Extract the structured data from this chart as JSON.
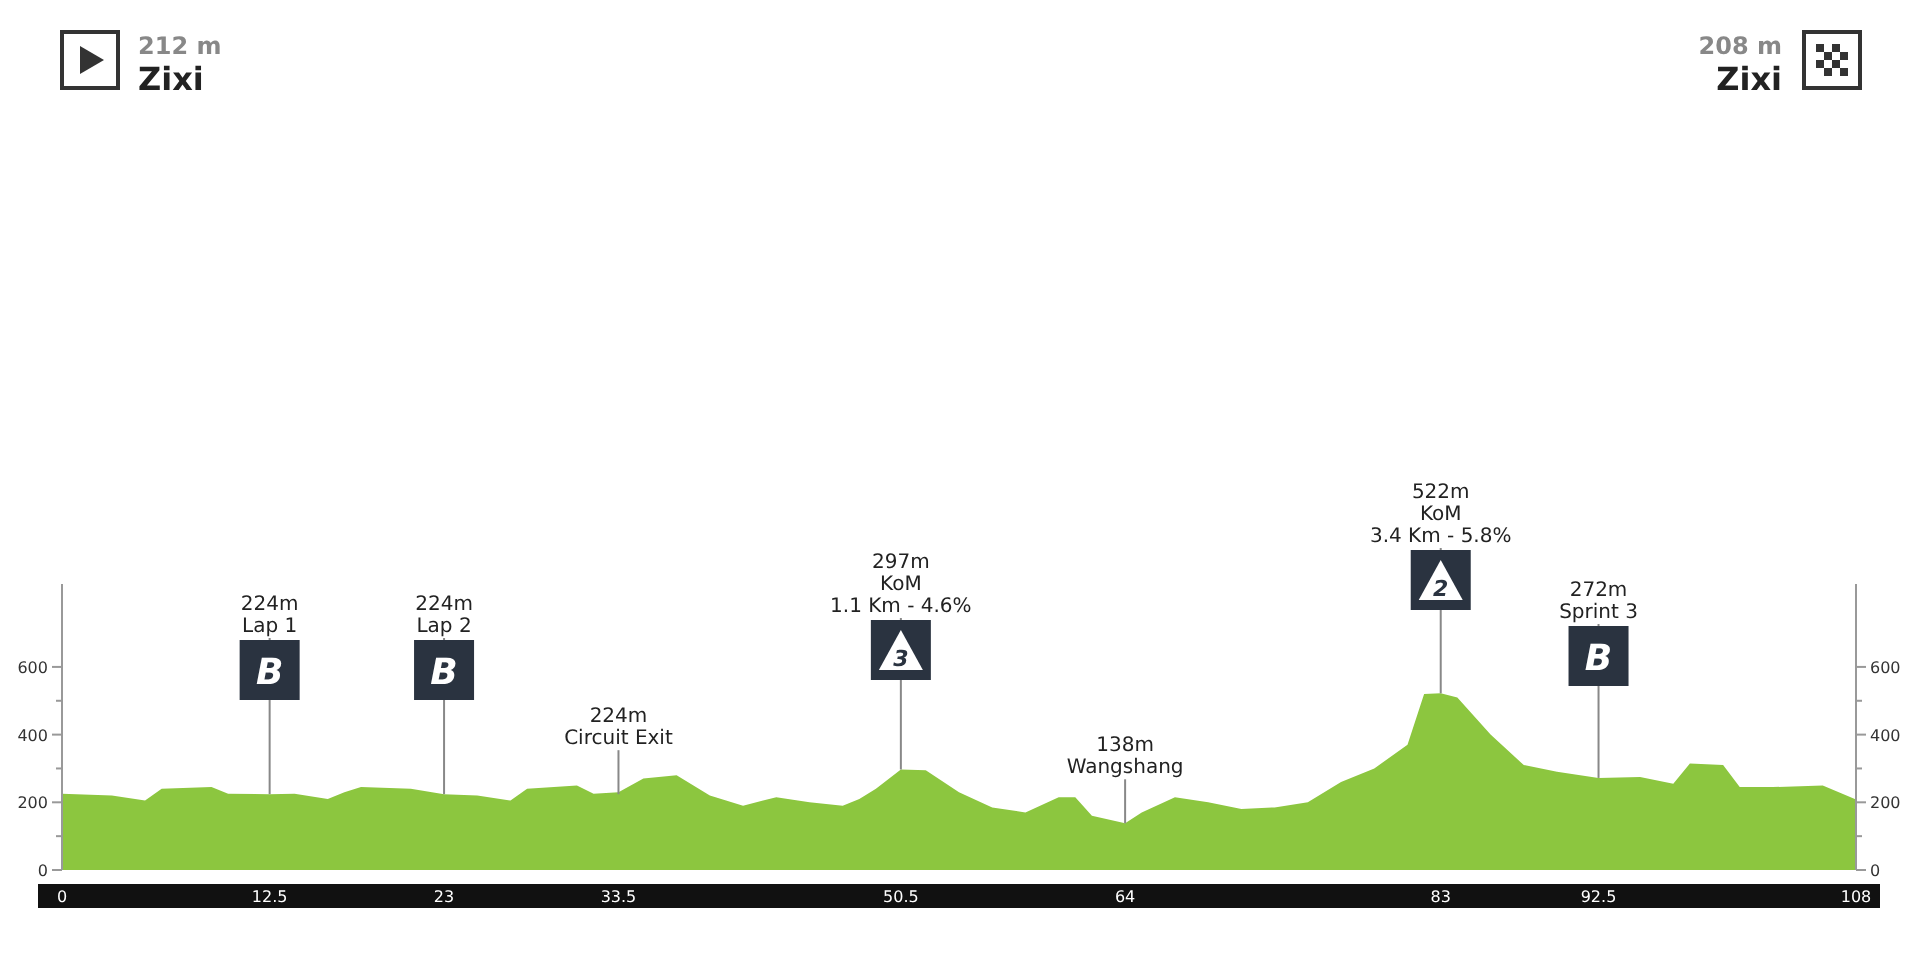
{
  "chart_data": {
    "type": "area",
    "color": "#8cc63f",
    "x": [
      0,
      3,
      5,
      6,
      9,
      10,
      12.5,
      14,
      16,
      17,
      18,
      21,
      23,
      25,
      27,
      28,
      31,
      32,
      33.5,
      35,
      37,
      39,
      41,
      43,
      45,
      47,
      48,
      49,
      50.5,
      52,
      54,
      56,
      58,
      60,
      61,
      62,
      64,
      65,
      67,
      69,
      71,
      73,
      75,
      77,
      79,
      81,
      82,
      83,
      84,
      86,
      88,
      90,
      92.5,
      95,
      97,
      98,
      100,
      101,
      103,
      106,
      108
    ],
    "values": [
      225,
      220,
      205,
      240,
      245,
      225,
      224,
      225,
      210,
      230,
      245,
      240,
      224,
      220,
      205,
      240,
      250,
      225,
      230,
      270,
      280,
      220,
      190,
      215,
      200,
      190,
      210,
      240,
      297,
      295,
      230,
      185,
      170,
      215,
      215,
      160,
      138,
      170,
      215,
      200,
      180,
      185,
      200,
      260,
      300,
      370,
      520,
      522,
      510,
      400,
      310,
      290,
      272,
      275,
      255,
      315,
      310,
      245,
      245,
      250,
      208
    ],
    "xlim": [
      0,
      108
    ],
    "xticks": [
      0,
      12.5,
      23,
      33.5,
      50.5,
      64,
      83,
      92.5,
      108
    ],
    "ylim": [
      0,
      845
    ],
    "yticks": [
      0,
      {
        "value": 100,
        "label": null
      },
      200,
      {
        "value": 300,
        "label": null
      },
      400,
      {
        "value": 500,
        "label": null
      },
      600
    ],
    "y2lim": [
      0,
      845
    ],
    "y2ticks": [
      0,
      {
        "value": 100,
        "label": null
      },
      200,
      {
        "value": 300,
        "label": null
      },
      400,
      {
        "value": 500,
        "label": null
      },
      600
    ],
    "annotations": [
      "212 m\nZixi",
      "208 m\nZixi",
      {
        "text": "224m\nLap 1",
        "x": 12.5,
        "y": 224
      },
      {
        "text": "B",
        "x": 12.5,
        "y": 224
      },
      {
        "text": "224m\nLap 2",
        "x": 23,
        "y": 224
      },
      {
        "text": "B",
        "x": 23,
        "y": 224
      },
      {
        "text": "224m\nCircuit Exit",
        "x": 33.5,
        "y": 224
      },
      {
        "text": "297m\nKoM\n1.1 Km - 4.6%",
        "x": 50.5,
        "y": 297
      },
      {
        "text": "3",
        "x": 50.5,
        "y": 297
      },
      {
        "text": "138m\nWangshang",
        "x": 64,
        "y": 138
      },
      {
        "text": "522m\nKoM\n3.4 Km - 5.8%",
        "x": 83,
        "y": 522
      },
      {
        "text": "2",
        "x": 83,
        "y": 522
      },
      {
        "text": "272m\nSprint 3",
        "x": 92.5,
        "y": 272
      },
      {
        "text": "B",
        "x": 92.5,
        "y": 272
      }
    ]
  }
}
